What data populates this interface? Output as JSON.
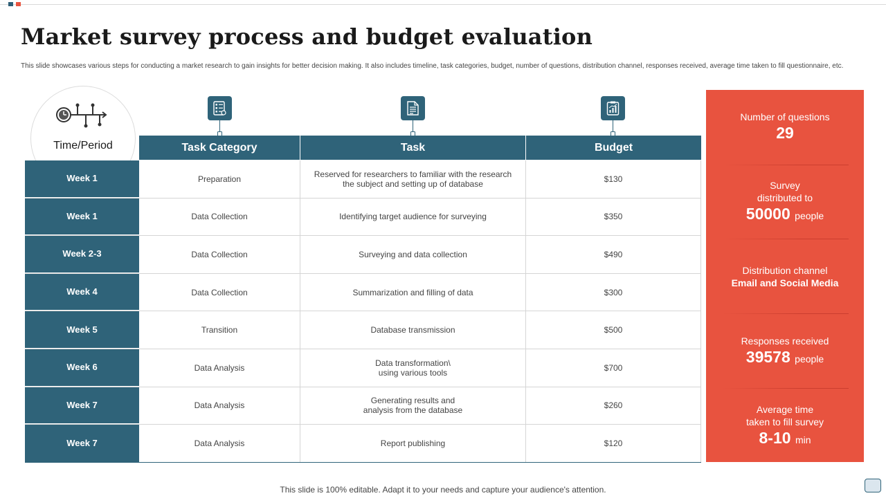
{
  "title": "Market survey process and budget evaluation",
  "subtitle": "This slide showcases various steps for conducting a market research to gain insights for better decision making.  It also includes timeline, task categories, budget, number of questions, distribution channel, responses received, average time taken to fill questionnaire, etc.",
  "time_label": "Time/Period",
  "headers": {
    "category": "Task Category",
    "task": "Task",
    "budget": "Budget"
  },
  "rows": [
    {
      "week": "Week 1",
      "category": "Preparation",
      "task": "Reserved for researchers to familiar with the research\nthe subject and setting up of database",
      "budget": "$130"
    },
    {
      "week": "Week 1",
      "category": "Data Collection",
      "task": "Identifying target audience for surveying",
      "budget": "$350"
    },
    {
      "week": "Week 2-3",
      "category": "Data Collection",
      "task": "Surveying  and data collection",
      "budget": "$490"
    },
    {
      "week": "Week 4",
      "category": "Data Collection",
      "task": "Summarization and filling of data",
      "budget": "$300"
    },
    {
      "week": "Week 5",
      "category": "Transition",
      "task": "Database transmission",
      "budget": "$500"
    },
    {
      "week": "Week 6",
      "category": "Data Analysis",
      "task": "Data transformation\\\nusing various tools",
      "budget": "$700"
    },
    {
      "week": "Week 7",
      "category": "Data Analysis",
      "task": "Generating results and\nanalysis from the database",
      "budget": "$260"
    },
    {
      "week": "Week 7",
      "category": "Data Analysis",
      "task": "Report publishing",
      "budget": "$120"
    }
  ],
  "stats": {
    "questions": {
      "label": "Number of questions",
      "value": "29"
    },
    "distributed": {
      "label": "Survey\ndistributed to",
      "value": "50000",
      "unit": "people"
    },
    "channel": {
      "label": "Distribution channel",
      "value": "Email and Social Media"
    },
    "responses": {
      "label": "Responses received",
      "value": "39578",
      "unit": "people"
    },
    "avg_time": {
      "label": "Average time\ntaken to fill survey",
      "value": "8-10",
      "unit": "min"
    }
  },
  "footer": "This slide is 100% editable. Adapt it to your needs and capture your audience's attention.",
  "colors": {
    "primary": "#2f6379",
    "accent": "#e8533f"
  },
  "icons": {
    "time": "clock-timeline-icon",
    "category": "checklist-icon",
    "task": "document-icon",
    "budget": "chart-report-icon"
  }
}
